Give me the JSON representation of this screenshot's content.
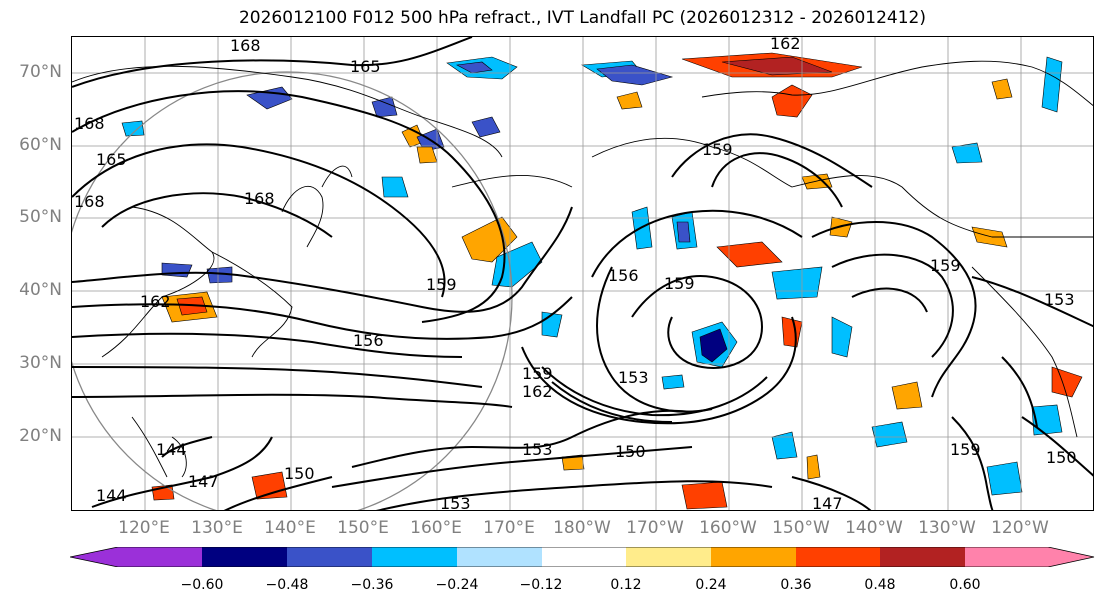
{
  "title": "2026012100 F012 500 hPa refract., IVT Landfall PC (2026012312 - 2026012412)",
  "latitude_labels": [
    "70°N",
    "60°N",
    "50°N",
    "40°N",
    "30°N",
    "20°N"
  ],
  "longitude_labels": [
    "120°E",
    "130°E",
    "140°E",
    "150°E",
    "160°E",
    "170°E",
    "180°W",
    "170°W",
    "160°W",
    "150°W",
    "140°W",
    "130°W",
    "120°W"
  ],
  "contour_labels": [
    "168",
    "165",
    "162",
    "168",
    "165",
    "168",
    "168",
    "162",
    "159",
    "156",
    "156",
    "159",
    "159",
    "162",
    "153",
    "153",
    "150",
    "153",
    "147",
    "150",
    "144",
    "144",
    "147",
    "159",
    "159",
    "153",
    "150",
    "159"
  ],
  "colorbar": {
    "ticks": [
      "−0.60",
      "−0.48",
      "−0.36",
      "−0.24",
      "−0.12",
      "0.12",
      "0.24",
      "0.36",
      "0.48",
      "0.60"
    ],
    "colors": {
      "under": "#9b30d9",
      "lt_-0.60": "#9b30d9",
      "-0.60_-0.48": "#000080",
      "-0.48_-0.36": "#3a52c8",
      "-0.36_-0.24": "#00bfff",
      "-0.24_-0.12": "#b0e2ff",
      "-0.12_0.12": "#ffffff",
      "0.12_0.24": "#ffec8b",
      "0.24_0.36": "#ffa500",
      "0.36_0.48": "#ff4000",
      "0.48_0.60": "#b22222",
      "gt_0.60": "#ff82ab"
    }
  }
}
